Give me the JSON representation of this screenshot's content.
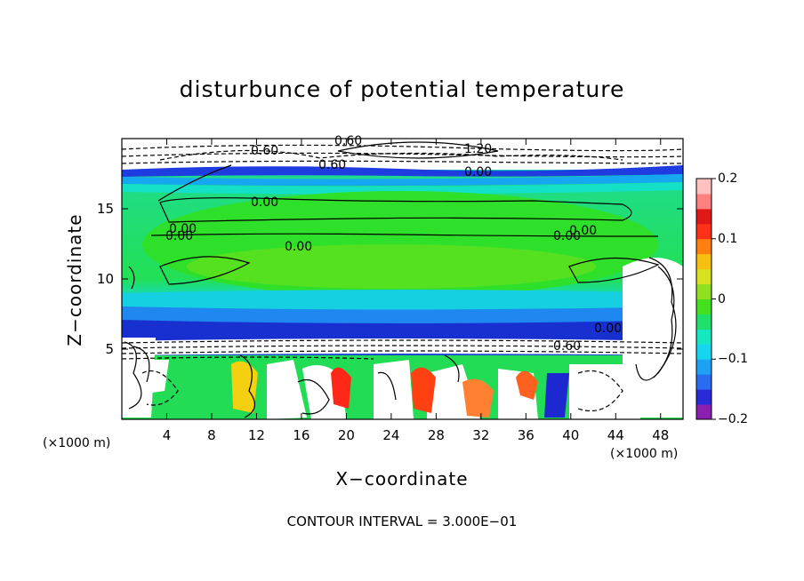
{
  "chart_data": {
    "type": "heatmap",
    "title": "disturbunce of potential temperature",
    "xlabel": "X−coordinate",
    "ylabel": "Z−coordinate",
    "x_unit": "(×1000 m)",
    "y_unit": "(×1000 m)",
    "xlim": [
      0,
      50
    ],
    "ylim": [
      0,
      20
    ],
    "x_ticks": [
      "4",
      "8",
      "12",
      "16",
      "20",
      "24",
      "28",
      "32",
      "36",
      "40",
      "44",
      "48"
    ],
    "y_ticks": [
      "5",
      "10",
      "15"
    ],
    "colorbar": {
      "range": [
        -0.2,
        0.2
      ],
      "tick_labels": [
        "0.2",
        "0.1",
        "0",
        "−0.1",
        "−0.2"
      ],
      "colors": [
        "#8a1fb0",
        "#2a2ad8",
        "#2a6cf0",
        "#1ea0f5",
        "#15d5f0",
        "#14e8c0",
        "#1fe06a",
        "#44e020",
        "#90e020",
        "#d8e020",
        "#f5c010",
        "#ff8010",
        "#ff3018",
        "#e01818",
        "#ff8080",
        "#ffc0c0"
      ]
    },
    "contour_labels": [
      "0.60",
      "0.60",
      "1.20",
      "0.60",
      "0.00",
      "0.00",
      "0.00",
      "0.00",
      "0.00",
      "0.00",
      "0.00",
      "0.00",
      "0.60"
    ],
    "contour_interval": "CONTOUR INTERVAL = 3.000E−01",
    "grid": false
  }
}
